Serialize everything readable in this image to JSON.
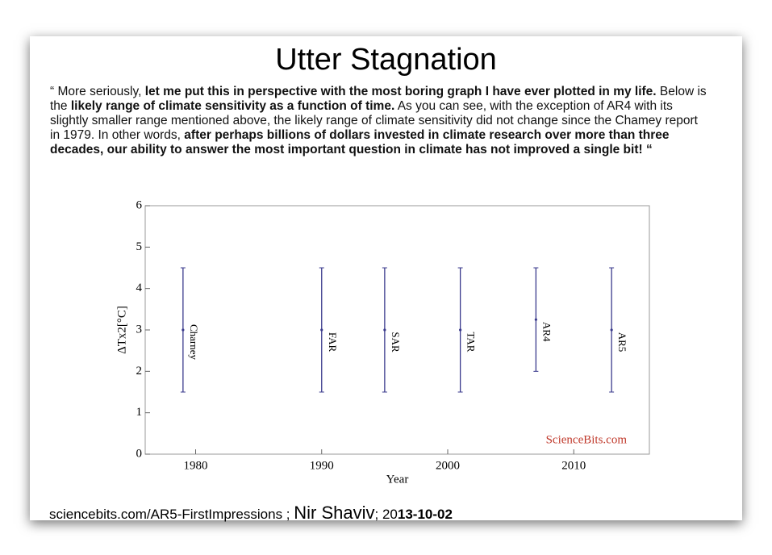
{
  "title": "Utter Stagnation",
  "paragraph": [
    {
      "text": "“ More seriously, ",
      "bold": false
    },
    {
      "text": "let me put this in perspective with the most boring graph I have ever plotted in my life.",
      "bold": true
    },
    {
      "text": " Below is the ",
      "bold": false
    },
    {
      "text": "likely range of climate sensitivity as a function of time.",
      "bold": true
    },
    {
      "text": " As you can see, with the exception of AR4 with its slightly smaller range mentioned above, the likely range of climate sensitivity did not change since the Chamey report in 1979. In other words, ",
      "bold": false
    },
    {
      "text": "after perhaps billions of dollars invested in climate research over more than three decades, our ability to answer the most important question in climate has not improved a single bit! “",
      "bold": true
    }
  ],
  "footer": {
    "link": "sciencebits.com/AR5-FirstImpressions ;",
    "author": "Nir Shaviv",
    "date_prefix": "; 20",
    "date_rest": "13-10-02"
  },
  "chart_data": {
    "type": "errorbar",
    "categories": [
      "Charney",
      "FAR",
      "SAR",
      "TAR",
      "AR4",
      "AR5"
    ],
    "x": [
      1979,
      1990,
      1995,
      2001,
      2007,
      2013
    ],
    "values": [
      3,
      3,
      3,
      3,
      3.25,
      3
    ],
    "low": [
      1.5,
      1.5,
      1.5,
      1.5,
      2,
      1.5
    ],
    "high": [
      4.5,
      4.5,
      4.5,
      4.5,
      4.5,
      4.5
    ],
    "color": "#3a3a8c",
    "xlabel": "Year",
    "ylabel": "ΔTx2[°C]",
    "xlim": [
      1976,
      2016
    ],
    "xticks": [
      1980,
      1990,
      2000,
      2010
    ],
    "ylim": [
      0,
      6
    ],
    "yticks": [
      0,
      1,
      2,
      3,
      4,
      5,
      6
    ],
    "annotation": "ScienceBits.com",
    "annotation_color": "#c0392b"
  }
}
